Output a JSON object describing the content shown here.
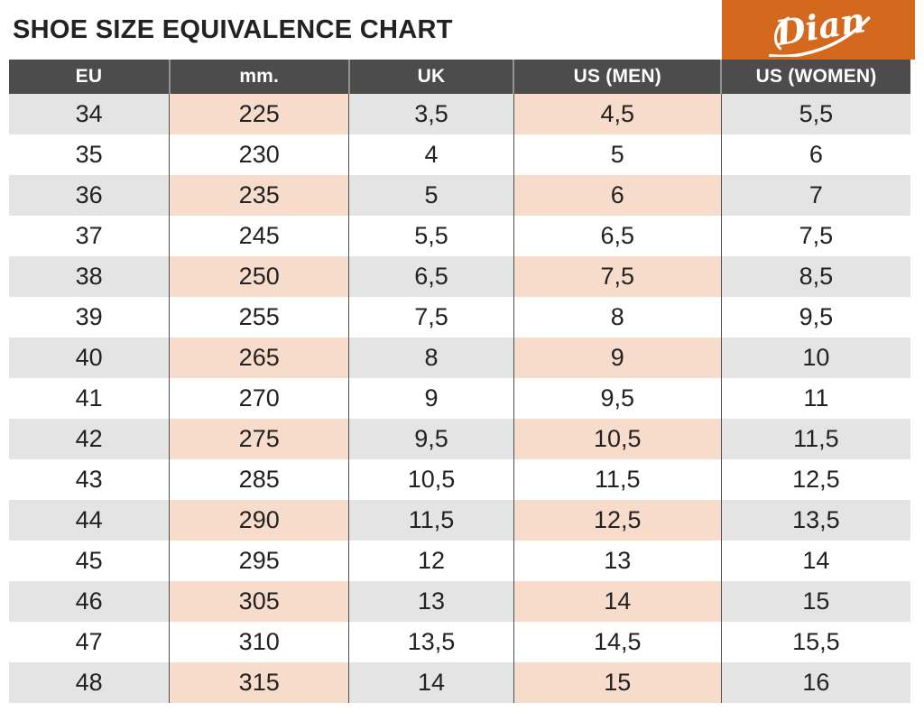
{
  "title": "SHOE SIZE EQUIVALENCE CHART",
  "logo": {
    "text": "Dian",
    "bg_color": "#d4691e",
    "text_color": "#ffffff"
  },
  "colors": {
    "accent": "#d4691e",
    "header_bg": "#4c4c4c",
    "row_shade": "#e4e4e4",
    "accent_cell_shade": "#f7dccb",
    "text": "#242122"
  },
  "chart_data": {
    "type": "table",
    "title": "SHOE SIZE EQUIVALENCE CHART",
    "columns": [
      "EU",
      "mm.",
      "UK",
      "US (MEN)",
      "US (WOMEN)"
    ],
    "rows": [
      [
        "34",
        "225",
        "3,5",
        "4,5",
        "5,5"
      ],
      [
        "35",
        "230",
        "4",
        "5",
        "6"
      ],
      [
        "36",
        "235",
        "5",
        "6",
        "7"
      ],
      [
        "37",
        "245",
        "5,5",
        "6,5",
        "7,5"
      ],
      [
        "38",
        "250",
        "6,5",
        "7,5",
        "8,5"
      ],
      [
        "39",
        "255",
        "7,5",
        "8",
        "9,5"
      ],
      [
        "40",
        "265",
        "8",
        "9",
        "10"
      ],
      [
        "41",
        "270",
        "9",
        "9,5",
        "11"
      ],
      [
        "42",
        "275",
        "9,5",
        "10,5",
        "11,5"
      ],
      [
        "43",
        "285",
        "10,5",
        "11,5",
        "12,5"
      ],
      [
        "44",
        "290",
        "11,5",
        "12,5",
        "13,5"
      ],
      [
        "45",
        "295",
        "12",
        "13",
        "14"
      ],
      [
        "46",
        "305",
        "13",
        "14",
        "15"
      ],
      [
        "47",
        "310",
        "13,5",
        "14,5",
        "15,5"
      ],
      [
        "48",
        "315",
        "14",
        "15",
        "16"
      ]
    ],
    "layout": {
      "shaded_row_indices": [
        0,
        2,
        4,
        6,
        8,
        10,
        12,
        14
      ],
      "accent_column_indices": [
        1,
        3
      ],
      "column_width_percents": [
        17.8,
        19.9,
        18.3,
        23.0,
        21.0
      ]
    }
  }
}
